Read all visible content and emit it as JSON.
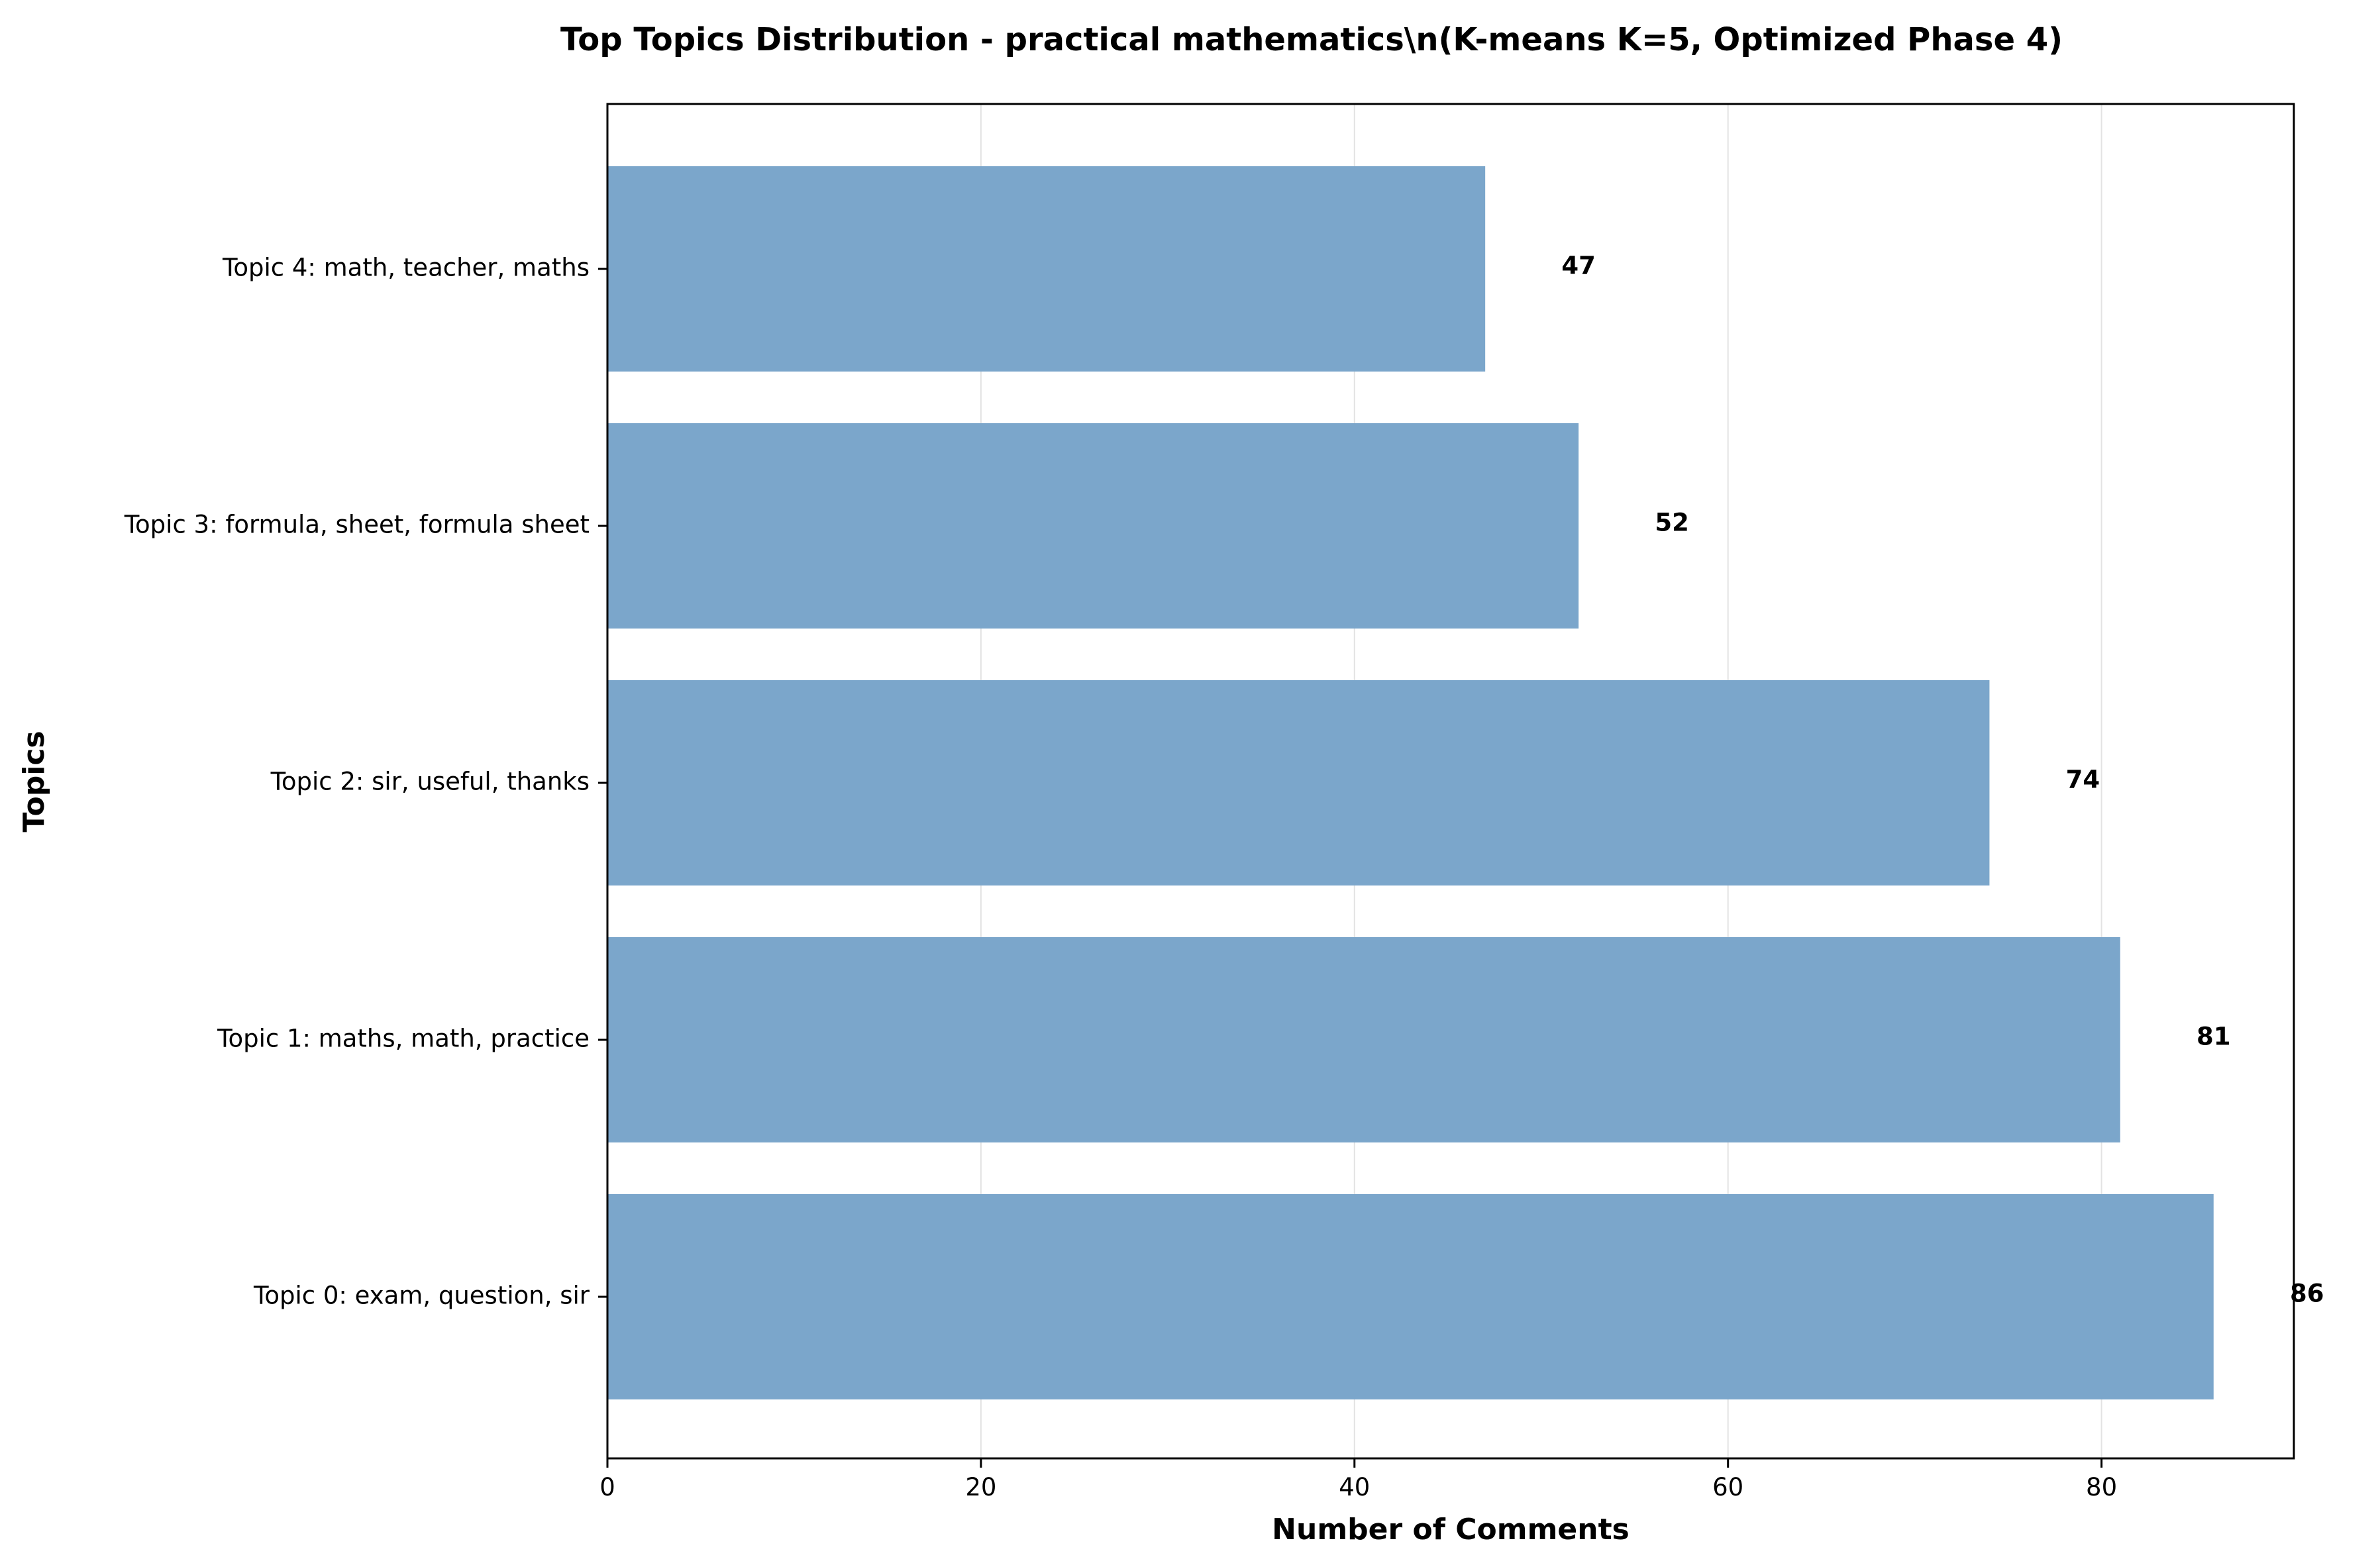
{
  "chart_data": {
    "type": "bar",
    "orientation": "horizontal",
    "title": "Top Topics Distribution - practical mathematics\\n(K-means K=5, Optimized Phase 4)",
    "xlabel": "Number of Comments",
    "ylabel": "Topics",
    "categories": [
      "Topic 0: exam, question, sir",
      "Topic 1: maths, math, practice",
      "Topic 2: sir, useful, thanks",
      "Topic 3: formula, sheet, formula sheet",
      "Topic 4: math, teacher, maths"
    ],
    "values": [
      86,
      81,
      74,
      52,
      47
    ],
    "value_labels": [
      "86",
      "81",
      "74",
      "52",
      "47"
    ],
    "xlim": [
      0,
      90.3
    ],
    "xticks": [
      0,
      20,
      40,
      60,
      80
    ],
    "xtick_labels": [
      "0",
      "20",
      "40",
      "60",
      "80"
    ],
    "grid": "x",
    "bar_color": "#7ba6cb",
    "grid_color": "#e3e3e3"
  }
}
